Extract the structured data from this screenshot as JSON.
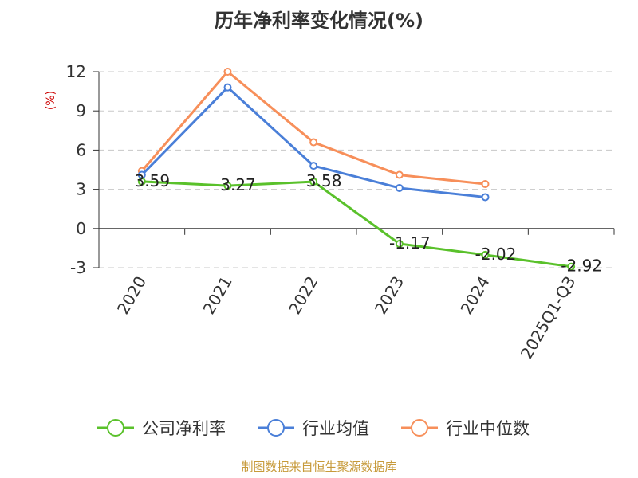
{
  "chart_data": {
    "type": "line",
    "title": "历年净利率变化情况(%)",
    "ylabel": "(%)",
    "ylim": [
      -3,
      12
    ],
    "yticks": [
      -3,
      0,
      3,
      6,
      9,
      12
    ],
    "categories": [
      "2020",
      "2021",
      "2022",
      "2023",
      "2024",
      "2025Q1-Q3"
    ],
    "grid": true,
    "legend_position": "bottom",
    "series": [
      {
        "name": "公司净利率",
        "color": "#5ac12b",
        "values": [
          3.59,
          3.27,
          3.58,
          -1.17,
          -2.02,
          -2.92
        ],
        "show_labels": true
      },
      {
        "name": "行业均值",
        "color": "#4a7fd8",
        "values": [
          4.1,
          10.8,
          4.8,
          3.1,
          2.4,
          null
        ],
        "show_labels": false
      },
      {
        "name": "行业中位数",
        "color": "#f78f5a",
        "values": [
          4.4,
          12.0,
          6.6,
          4.1,
          3.4,
          null
        ],
        "show_labels": false
      }
    ]
  },
  "source": "制图数据来自恒生聚源数据库"
}
